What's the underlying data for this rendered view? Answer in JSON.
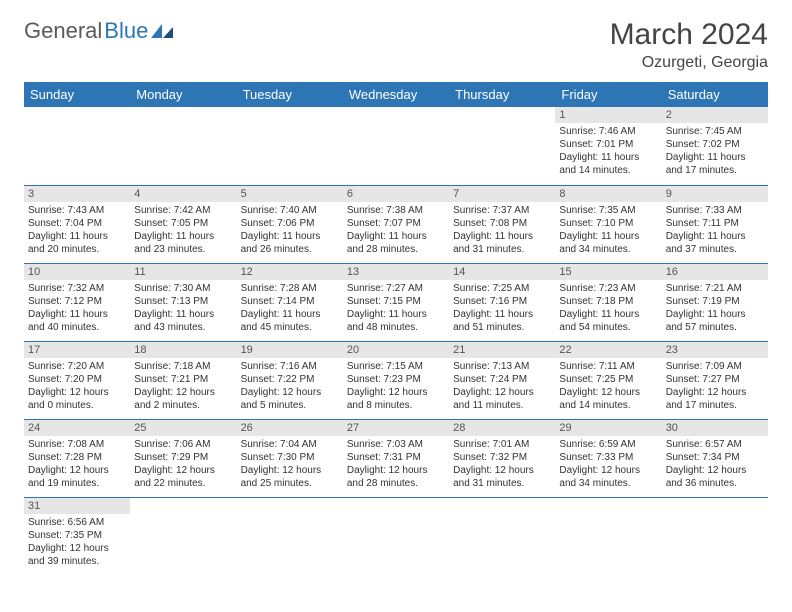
{
  "logo": {
    "text1": "General",
    "text2": "Blue"
  },
  "title": "March 2024",
  "location": "Ozurgeti, Georgia",
  "colors": {
    "header_bg": "#2e75b6",
    "daynum_bg": "#e6e6e6",
    "border": "#2e75b6"
  },
  "weekdays": [
    "Sunday",
    "Monday",
    "Tuesday",
    "Wednesday",
    "Thursday",
    "Friday",
    "Saturday"
  ],
  "weeks": [
    [
      null,
      null,
      null,
      null,
      null,
      {
        "n": "1",
        "sr": "7:46 AM",
        "ss": "7:01 PM",
        "dl": "11 hours and 14 minutes."
      },
      {
        "n": "2",
        "sr": "7:45 AM",
        "ss": "7:02 PM",
        "dl": "11 hours and 17 minutes."
      }
    ],
    [
      {
        "n": "3",
        "sr": "7:43 AM",
        "ss": "7:04 PM",
        "dl": "11 hours and 20 minutes."
      },
      {
        "n": "4",
        "sr": "7:42 AM",
        "ss": "7:05 PM",
        "dl": "11 hours and 23 minutes."
      },
      {
        "n": "5",
        "sr": "7:40 AM",
        "ss": "7:06 PM",
        "dl": "11 hours and 26 minutes."
      },
      {
        "n": "6",
        "sr": "7:38 AM",
        "ss": "7:07 PM",
        "dl": "11 hours and 28 minutes."
      },
      {
        "n": "7",
        "sr": "7:37 AM",
        "ss": "7:08 PM",
        "dl": "11 hours and 31 minutes."
      },
      {
        "n": "8",
        "sr": "7:35 AM",
        "ss": "7:10 PM",
        "dl": "11 hours and 34 minutes."
      },
      {
        "n": "9",
        "sr": "7:33 AM",
        "ss": "7:11 PM",
        "dl": "11 hours and 37 minutes."
      }
    ],
    [
      {
        "n": "10",
        "sr": "7:32 AM",
        "ss": "7:12 PM",
        "dl": "11 hours and 40 minutes."
      },
      {
        "n": "11",
        "sr": "7:30 AM",
        "ss": "7:13 PM",
        "dl": "11 hours and 43 minutes."
      },
      {
        "n": "12",
        "sr": "7:28 AM",
        "ss": "7:14 PM",
        "dl": "11 hours and 45 minutes."
      },
      {
        "n": "13",
        "sr": "7:27 AM",
        "ss": "7:15 PM",
        "dl": "11 hours and 48 minutes."
      },
      {
        "n": "14",
        "sr": "7:25 AM",
        "ss": "7:16 PM",
        "dl": "11 hours and 51 minutes."
      },
      {
        "n": "15",
        "sr": "7:23 AM",
        "ss": "7:18 PM",
        "dl": "11 hours and 54 minutes."
      },
      {
        "n": "16",
        "sr": "7:21 AM",
        "ss": "7:19 PM",
        "dl": "11 hours and 57 minutes."
      }
    ],
    [
      {
        "n": "17",
        "sr": "7:20 AM",
        "ss": "7:20 PM",
        "dl": "12 hours and 0 minutes."
      },
      {
        "n": "18",
        "sr": "7:18 AM",
        "ss": "7:21 PM",
        "dl": "12 hours and 2 minutes."
      },
      {
        "n": "19",
        "sr": "7:16 AM",
        "ss": "7:22 PM",
        "dl": "12 hours and 5 minutes."
      },
      {
        "n": "20",
        "sr": "7:15 AM",
        "ss": "7:23 PM",
        "dl": "12 hours and 8 minutes."
      },
      {
        "n": "21",
        "sr": "7:13 AM",
        "ss": "7:24 PM",
        "dl": "12 hours and 11 minutes."
      },
      {
        "n": "22",
        "sr": "7:11 AM",
        "ss": "7:25 PM",
        "dl": "12 hours and 14 minutes."
      },
      {
        "n": "23",
        "sr": "7:09 AM",
        "ss": "7:27 PM",
        "dl": "12 hours and 17 minutes."
      }
    ],
    [
      {
        "n": "24",
        "sr": "7:08 AM",
        "ss": "7:28 PM",
        "dl": "12 hours and 19 minutes."
      },
      {
        "n": "25",
        "sr": "7:06 AM",
        "ss": "7:29 PM",
        "dl": "12 hours and 22 minutes."
      },
      {
        "n": "26",
        "sr": "7:04 AM",
        "ss": "7:30 PM",
        "dl": "12 hours and 25 minutes."
      },
      {
        "n": "27",
        "sr": "7:03 AM",
        "ss": "7:31 PM",
        "dl": "12 hours and 28 minutes."
      },
      {
        "n": "28",
        "sr": "7:01 AM",
        "ss": "7:32 PM",
        "dl": "12 hours and 31 minutes."
      },
      {
        "n": "29",
        "sr": "6:59 AM",
        "ss": "7:33 PM",
        "dl": "12 hours and 34 minutes."
      },
      {
        "n": "30",
        "sr": "6:57 AM",
        "ss": "7:34 PM",
        "dl": "12 hours and 36 minutes."
      }
    ],
    [
      {
        "n": "31",
        "sr": "6:56 AM",
        "ss": "7:35 PM",
        "dl": "12 hours and 39 minutes."
      },
      null,
      null,
      null,
      null,
      null,
      null
    ]
  ],
  "labels": {
    "sunrise": "Sunrise: ",
    "sunset": "Sunset: ",
    "daylight": "Daylight: "
  }
}
